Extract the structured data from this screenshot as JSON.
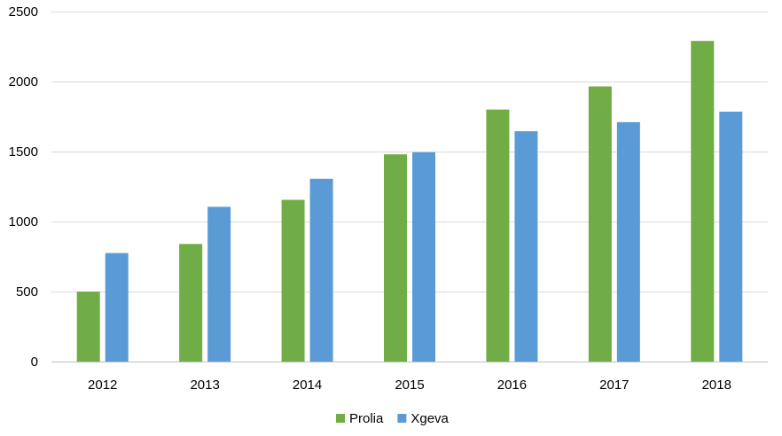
{
  "chart_data": {
    "type": "bar",
    "title": "",
    "xlabel": "",
    "ylabel": "",
    "categories": [
      "2012",
      "2013",
      "2014",
      "2015",
      "2016",
      "2017",
      "2018"
    ],
    "series": [
      {
        "name": "Prolia",
        "color": "#70ad47",
        "values": [
          500,
          840,
          1155,
          1480,
          1800,
          1965,
          2290
        ]
      },
      {
        "name": "Xgeva",
        "color": "#5b9bd5",
        "values": [
          775,
          1105,
          1305,
          1495,
          1645,
          1710,
          1785
        ]
      }
    ],
    "ylim": [
      0,
      2500
    ],
    "y_ticks": [
      "0",
      "500",
      "1000",
      "1500",
      "2000",
      "2500"
    ],
    "grid": true,
    "legend_position": "bottom"
  }
}
